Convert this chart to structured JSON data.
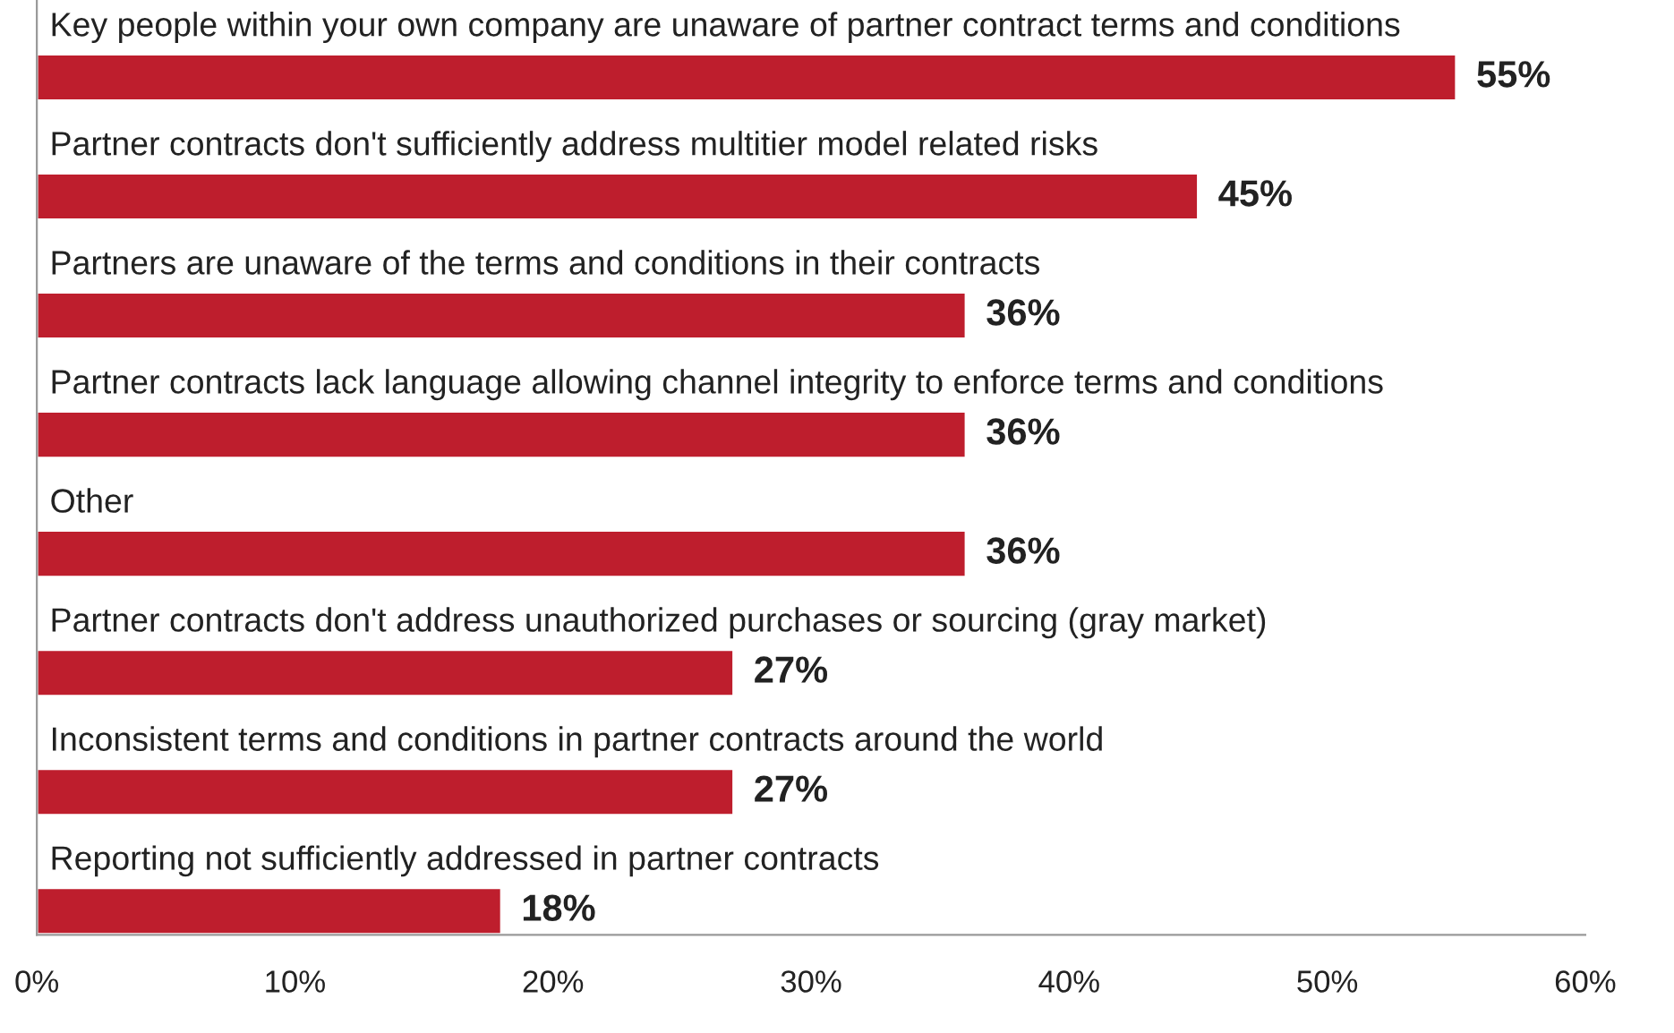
{
  "chart_data": {
    "type": "bar",
    "orientation": "horizontal",
    "categories": [
      "Key people within your own company are unaware of partner contract terms and conditions",
      "Partner contracts don't sufficiently address multitier model related risks",
      "Partners are unaware of the terms and conditions in their contracts",
      "Partner contracts lack language allowing channel integrity to enforce terms and conditions",
      "Other",
      "Partner contracts don't address unauthorized purchases or sourcing (gray market)",
      "Inconsistent terms and conditions in partner contracts around the world",
      "Reporting not sufficiently addressed in partner contracts"
    ],
    "values": [
      55,
      45,
      36,
      36,
      36,
      27,
      27,
      18
    ],
    "value_labels": [
      "55%",
      "45%",
      "36%",
      "36%",
      "36%",
      "27%",
      "27%",
      "18%"
    ],
    "color": "#be1e2d",
    "xlim": [
      0,
      60
    ],
    "xticks": [
      {
        "value": 0,
        "label": "0%"
      },
      {
        "value": 10,
        "label": "10%"
      },
      {
        "value": 20,
        "label": "20%"
      },
      {
        "value": 30,
        "label": "30%"
      },
      {
        "value": 40,
        "label": "40%"
      },
      {
        "value": 50,
        "label": "50%"
      },
      {
        "value": 60,
        "label": "60%"
      }
    ],
    "grid": false,
    "legend": false
  }
}
